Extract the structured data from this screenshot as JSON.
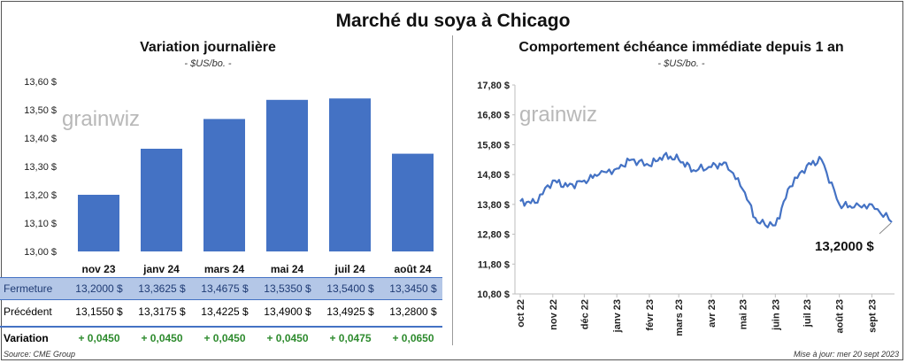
{
  "title": "Marché du soya à Chicago",
  "left": {
    "title": "Variation  journalière",
    "unit": "- $US/bo. -",
    "y_ticks": [
      "13,60 $",
      "13,50 $",
      "13,40 $",
      "13,30 $",
      "13,20 $",
      "13,10 $",
      "13,00 $"
    ],
    "table": {
      "fermeture_label": "Fermeture",
      "fermeture": [
        "13,2000  $",
        "13,3625  $",
        "13,4675  $",
        "13,5350  $",
        "13,5400  $",
        "13,3450  $"
      ],
      "precedent_label": "Précédent",
      "precedent": [
        "13,1550  $",
        "13,3175  $",
        "13,4225  $",
        "13,4900  $",
        "13,4925  $",
        "13,2800  $"
      ],
      "variation_label": "Variation",
      "variation": [
        "+ 0,0450",
        "+ 0,0450",
        "+ 0,0450",
        "+ 0,0450",
        "+ 0,0475",
        "+ 0,0650"
      ]
    }
  },
  "right": {
    "title": "Comportement  échéance immédiate depuis 1 an",
    "unit": "- $US/bo. -",
    "y_ticks": [
      "17,80 $",
      "16,80 $",
      "15,80 $",
      "14,80 $",
      "13,80 $",
      "12,80 $",
      "11,80 $",
      "10,80 $"
    ],
    "x_ticks": [
      "oct 22",
      "nov 22",
      "déc 22",
      "janv 23",
      "févr 23",
      "mars 23",
      "avr 23",
      "mai 23",
      "juin 23",
      "juil 23",
      "août 23",
      "sept 23"
    ],
    "last_value_label": "13,2000 $"
  },
  "watermark": "grainwiz",
  "source": "Source: CME Group",
  "updated": "Mise à jour: mer 20 sept 2023",
  "colors": {
    "bar": "#4472c4",
    "line": "#4472c4",
    "variation_text": "#2e8b2e",
    "table_header_bg": "#b4c7e7"
  },
  "chart_data": [
    {
      "type": "bar",
      "title": "Variation  journalière",
      "categories": [
        "nov 23",
        "janv 24",
        "mars 24",
        "mai 24",
        "juil 24",
        "août 24"
      ],
      "values": [
        13.2,
        13.3625,
        13.4675,
        13.535,
        13.54,
        13.345
      ],
      "ylim": [
        13.0,
        13.6
      ],
      "grid": false
    },
    {
      "type": "line",
      "title": "Comportement  échéance immédiate depuis 1 an",
      "ylim": [
        10.8,
        17.8
      ],
      "x": [
        "2022-10-01",
        "2022-10-15",
        "2022-11-01",
        "2022-11-15",
        "2022-12-01",
        "2022-12-15",
        "2023-01-01",
        "2023-01-15",
        "2023-02-01",
        "2023-02-15",
        "2023-03-01",
        "2023-03-15",
        "2023-04-01",
        "2023-04-15",
        "2023-05-01",
        "2023-05-15",
        "2023-06-01",
        "2023-06-15",
        "2023-07-01",
        "2023-07-15",
        "2023-08-01",
        "2023-08-15",
        "2023-09-01",
        "2023-09-20"
      ],
      "values": [
        13.9,
        13.85,
        14.6,
        14.4,
        14.6,
        14.8,
        15.0,
        15.3,
        15.1,
        15.45,
        15.3,
        14.95,
        15.05,
        15.2,
        14.3,
        13.2,
        13.1,
        14.4,
        15.1,
        15.3,
        13.8,
        13.7,
        13.8,
        13.2
      ],
      "grid": false
    }
  ]
}
